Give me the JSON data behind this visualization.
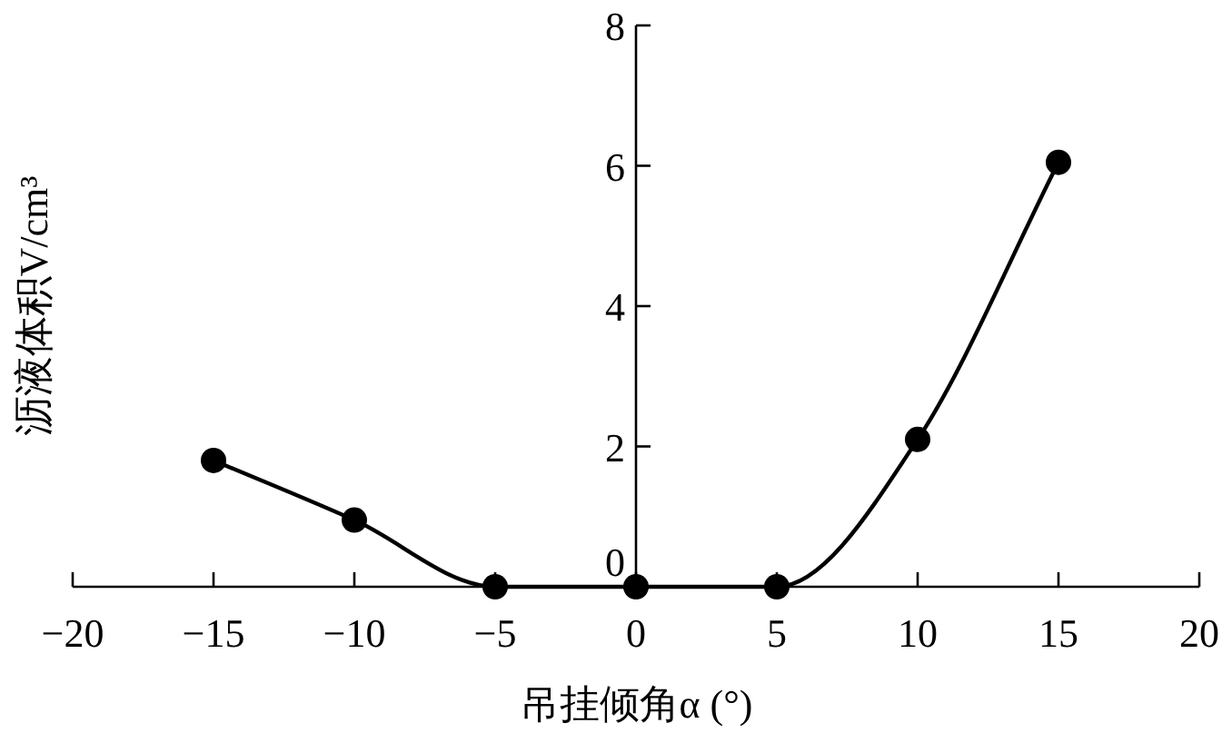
{
  "chart_data": {
    "type": "line",
    "xlabel": "吊挂倾角α (°)",
    "ylabel": "沥液体积V/cm³",
    "x": [
      -15,
      -10,
      -5,
      0,
      5,
      10,
      15
    ],
    "series": [
      {
        "color": "#000000",
        "values": [
          1.8,
          0.95,
          0,
          0,
          0,
          2.1,
          6.05
        ]
      }
    ],
    "xlim": [
      -20,
      20
    ],
    "xticks": [
      -20,
      -15,
      -10,
      -5,
      0,
      5,
      10,
      15,
      20
    ],
    "ylim": [
      0,
      8
    ],
    "yticks": [
      0,
      2,
      4,
      6,
      8
    ],
    "marker": "circle",
    "line_style": "solid"
  }
}
